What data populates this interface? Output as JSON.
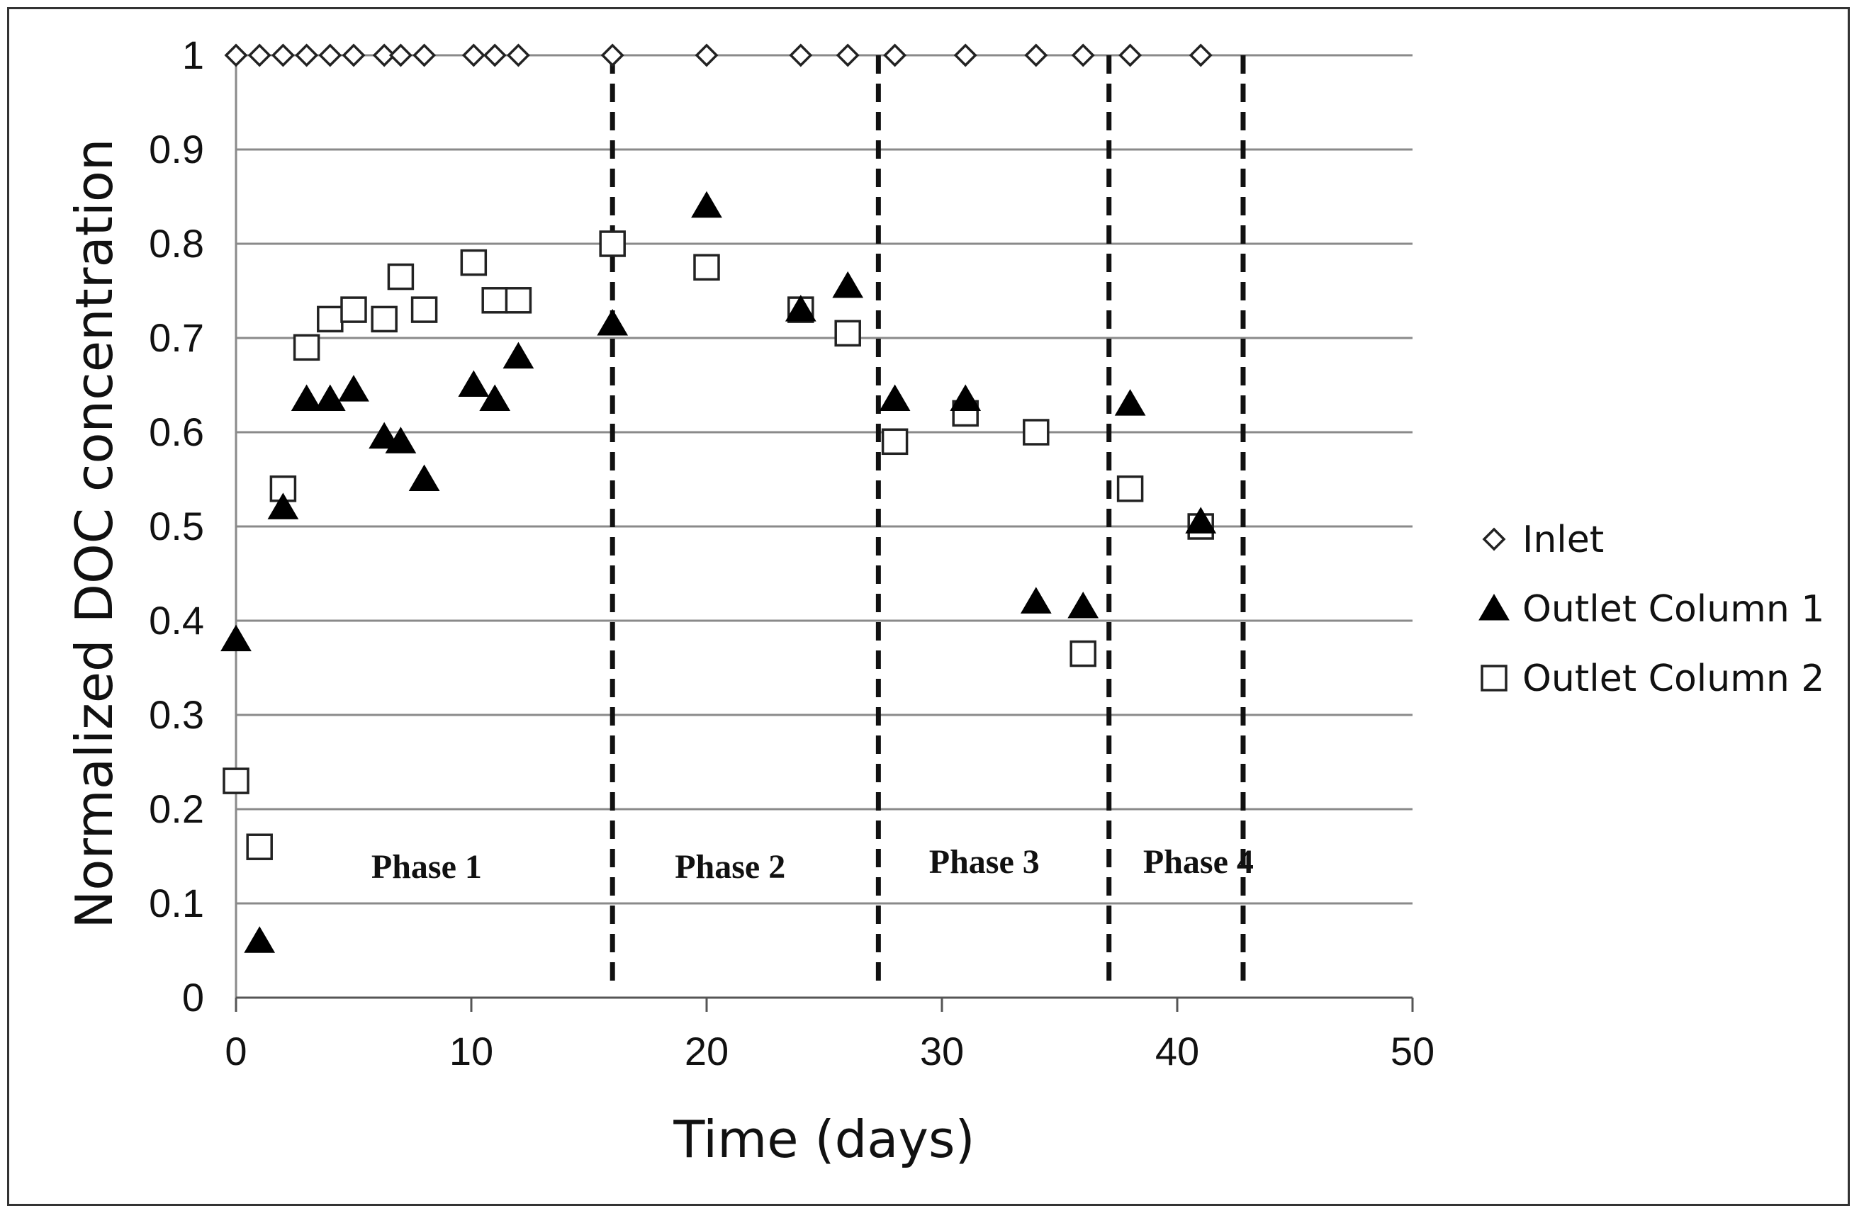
{
  "chart_data": {
    "type": "scatter",
    "title": "",
    "xlabel": "Time (days)",
    "ylabel": "Normalized DOC concentration",
    "xlim": [
      0,
      50
    ],
    "ylim": [
      0,
      1
    ],
    "x_ticks": [
      0,
      10,
      20,
      30,
      40,
      50
    ],
    "x_tick_labels": [
      "0",
      "10",
      "20",
      "30",
      "40",
      "50"
    ],
    "y_ticks": [
      0,
      0.1,
      0.2,
      0.3,
      0.4,
      0.5,
      0.6,
      0.7,
      0.8,
      0.9,
      1
    ],
    "y_tick_labels": [
      "0",
      "0.1",
      "0.2",
      "0.3",
      "0.4",
      "0.5",
      "0.6",
      "0.7",
      "0.8",
      "0.9",
      "1"
    ],
    "grid": "horizontal",
    "legend_position": "right",
    "series": [
      {
        "name": "Inlet",
        "marker": "diamond-open",
        "color": "#111111",
        "x": [
          0,
          1,
          2,
          3,
          4,
          5,
          6.3,
          7,
          8,
          10.1,
          11,
          12,
          16,
          20,
          24,
          26,
          28,
          31,
          34,
          36,
          38,
          41
        ],
        "y": [
          1,
          1,
          1,
          1,
          1,
          1,
          1,
          1,
          1,
          1,
          1,
          1,
          1,
          1,
          1,
          1,
          1,
          1,
          1,
          1,
          1,
          1
        ]
      },
      {
        "name": "Outlet Column 1",
        "marker": "triangle-filled",
        "color": "#000000",
        "x": [
          0,
          1,
          2,
          3,
          4,
          5,
          6.3,
          7,
          8,
          10.1,
          11,
          12,
          16,
          20,
          24,
          26,
          28,
          31,
          34,
          36,
          38,
          41
        ],
        "y": [
          0.38,
          0.06,
          0.52,
          0.635,
          0.635,
          0.645,
          0.595,
          0.59,
          0.55,
          0.65,
          0.635,
          0.68,
          0.715,
          0.84,
          0.73,
          0.755,
          0.635,
          0.635,
          0.42,
          0.415,
          0.63,
          0.505
        ]
      },
      {
        "name": "Outlet Column 2",
        "marker": "square-open",
        "color": "#111111",
        "x": [
          0,
          1,
          2,
          3,
          4,
          5,
          6.3,
          7,
          8,
          10.1,
          11,
          12,
          16,
          20,
          24,
          26,
          28,
          31,
          34,
          36,
          38,
          41
        ],
        "y": [
          0.23,
          0.16,
          0.54,
          0.69,
          0.72,
          0.73,
          0.72,
          0.765,
          0.73,
          0.78,
          0.74,
          0.74,
          0.8,
          0.775,
          0.73,
          0.705,
          0.59,
          0.62,
          0.6,
          0.365,
          0.54,
          0.5
        ]
      }
    ],
    "phase_boundaries": [
      16,
      27.3,
      37.1,
      42.8
    ],
    "phase_labels": [
      {
        "text": "Phase 1",
        "x": 8.1,
        "y": 0.14
      },
      {
        "text": "Phase 2",
        "x": 21,
        "y": 0.14
      },
      {
        "text": "Phase 3",
        "x": 31.8,
        "y": 0.145
      },
      {
        "text": "Phase 4",
        "x": 40.9,
        "y": 0.145
      }
    ]
  }
}
